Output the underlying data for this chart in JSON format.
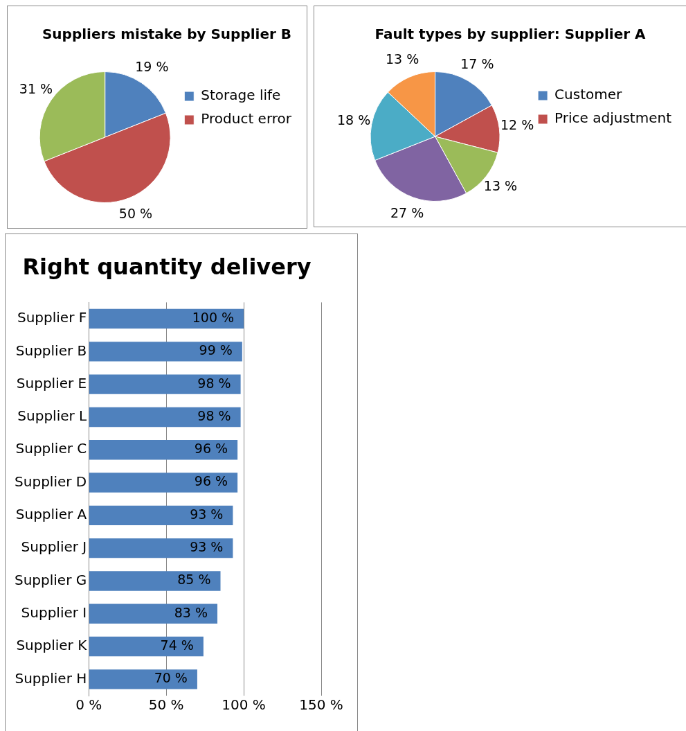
{
  "chart_data": [
    {
      "type": "pie",
      "title": "Suppliers mistake by Supplier B",
      "categories": [
        "Storage life",
        "Product error",
        null
      ],
      "values": [
        19,
        50,
        31
      ],
      "colors": [
        "#4f81bd",
        "#c0504d",
        "#9bbb59"
      ],
      "value_labels": [
        "19 %",
        "50 %",
        "31 %"
      ],
      "legend": "right"
    },
    {
      "type": "pie",
      "title": "Fault types by supplier: Supplier A",
      "categories": [
        "Customer",
        "Price adjustment",
        null,
        null,
        null,
        null
      ],
      "values": [
        17,
        12,
        13,
        27,
        18,
        13
      ],
      "colors": [
        "#4f81bd",
        "#c0504d",
        "#9bbb59",
        "#8064a2",
        "#4bacc6",
        "#f79646"
      ],
      "value_labels": [
        "17 %",
        "12 %",
        "13 %",
        "27 %",
        "18 %",
        "13 %"
      ],
      "legend": "right"
    },
    {
      "type": "bar",
      "orientation": "horizontal",
      "title": "Right quantity delivery",
      "categories": [
        "Supplier F",
        "Supplier B",
        "Supplier E",
        "Supplier L",
        "Supplier C",
        "Supplier D",
        "Supplier A",
        "Supplier J",
        "Supplier G",
        "Supplier I",
        "Supplier K",
        "Supplier H"
      ],
      "values": [
        100,
        99,
        98,
        98,
        96,
        96,
        93,
        93,
        85,
        83,
        74,
        70
      ],
      "color": "#4f81bd",
      "value_labels": [
        "100 %",
        "99 %",
        "98 %",
        "98 %",
        "96 %",
        "96 %",
        "93 %",
        "93 %",
        "85 %",
        "83 %",
        "74 %",
        "70 %"
      ],
      "xlim": [
        0,
        150
      ],
      "xticks": [
        {
          "value": 0,
          "label": "0 %"
        },
        {
          "value": 50,
          "label": "50 %"
        },
        {
          "value": 100,
          "label": "100 %"
        },
        {
          "value": 150,
          "label": "150 %"
        }
      ],
      "grid": "x",
      "legend": false
    }
  ]
}
